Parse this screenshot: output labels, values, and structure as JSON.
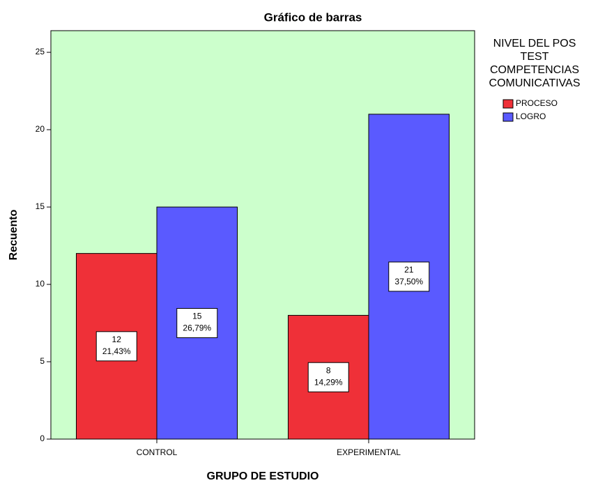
{
  "chart_data": {
    "type": "bar",
    "title": "Gráfico de barras",
    "x_label": "GRUPO DE ESTUDIO",
    "y_label": "Recuento",
    "categories": [
      "CONTROL",
      "EXPERIMENTAL"
    ],
    "legend_title": [
      "NIVEL DEL POS",
      "TEST",
      "COMPETENCIAS",
      "COMUNICATIVAS"
    ],
    "series": [
      {
        "name": "PROCESO",
        "color": "#ef3038",
        "values": [
          12,
          8
        ],
        "percent_labels": [
          "21,43%",
          "14,29%"
        ]
      },
      {
        "name": "LOGRO",
        "color": "#5a5aff",
        "values": [
          15,
          21
        ],
        "percent_labels": [
          "26,79%",
          "37,50%"
        ]
      }
    ],
    "ylim": [
      0,
      26.4
    ],
    "yticks": [
      0,
      5,
      10,
      15,
      20,
      25
    ],
    "background": "#ccffcc",
    "legend": "right"
  }
}
